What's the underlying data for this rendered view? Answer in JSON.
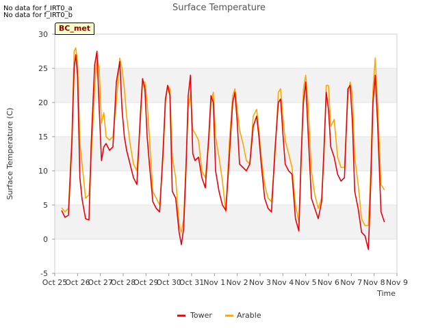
{
  "notes": [
    "No data for f_IRT0_a",
    "No data for f_IRT0_b"
  ],
  "badge": "BC_met",
  "chart_data": {
    "type": "line",
    "title": "Surface Temperature",
    "xlabel": "Time",
    "ylabel": "Surface Temperature (C)",
    "ylim": [
      -5,
      30
    ],
    "yticks": [
      -5,
      0,
      5,
      10,
      15,
      20,
      25,
      30
    ],
    "xlim": [
      0,
      15
    ],
    "xticks": [
      0,
      1,
      2,
      3,
      4,
      5,
      6,
      7,
      8,
      9,
      10,
      11,
      12,
      13,
      14,
      15
    ],
    "xtick_labels": [
      "Oct 25",
      "Oct 26",
      "Oct 27",
      "Oct 28",
      "Oct 29",
      "Oct 30",
      "Oct 31",
      "Nov 1",
      "Nov 2",
      "Nov 3",
      "Nov 4",
      "Nov 5",
      "Nov 6",
      "Nov 7",
      "Nov 8",
      "Nov 9"
    ],
    "grid": true,
    "legend_position": "bottom-center",
    "colors": {
      "Tower": "#e8000b",
      "Arable": "#ffa500",
      "band": "#f2f2f2",
      "grid": "#dddddd"
    },
    "series": [
      {
        "name": "Tower",
        "x": [
          0.3,
          0.45,
          0.6,
          0.75,
          0.85,
          0.92,
          1.0,
          1.1,
          1.2,
          1.35,
          1.5,
          1.6,
          1.75,
          1.85,
          1.95,
          2.05,
          2.15,
          2.25,
          2.4,
          2.55,
          2.7,
          2.85,
          2.95,
          3.05,
          3.15,
          3.3,
          3.45,
          3.6,
          3.75,
          3.85,
          3.95,
          4.05,
          4.15,
          4.3,
          4.45,
          4.6,
          4.75,
          4.85,
          4.95,
          5.05,
          5.15,
          5.3,
          5.45,
          5.55,
          5.65,
          5.75,
          5.85,
          5.95,
          6.05,
          6.15,
          6.3,
          6.45,
          6.6,
          6.75,
          6.85,
          6.95,
          7.05,
          7.2,
          7.35,
          7.5,
          7.65,
          7.8,
          7.9,
          8.0,
          8.1,
          8.25,
          8.4,
          8.55,
          8.7,
          8.85,
          8.95,
          9.05,
          9.2,
          9.35,
          9.5,
          9.65,
          9.8,
          9.9,
          10.0,
          10.1,
          10.25,
          10.4,
          10.55,
          10.7,
          10.8,
          10.9,
          11.0,
          11.1,
          11.25,
          11.4,
          11.55,
          11.7,
          11.8,
          11.9,
          12.0,
          12.1,
          12.25,
          12.4,
          12.55,
          12.7,
          12.85,
          12.95,
          13.05,
          13.15,
          13.3,
          13.45,
          13.6,
          13.75,
          13.85,
          13.95,
          14.05,
          14.15,
          14.3,
          14.45
        ],
        "y": [
          4.2,
          3.2,
          3.5,
          14.0,
          25.0,
          27.0,
          24.0,
          9.0,
          5.8,
          3.0,
          2.8,
          14.0,
          25.5,
          27.5,
          19.0,
          11.5,
          13.5,
          14.0,
          13.0,
          13.5,
          23.0,
          26.0,
          19.0,
          15.0,
          13.0,
          11.0,
          9.0,
          8.0,
          18.0,
          23.5,
          22.0,
          15.0,
          11.0,
          5.5,
          4.5,
          4.0,
          13.0,
          20.5,
          22.5,
          21.0,
          7.0,
          6.0,
          1.0,
          -0.8,
          1.5,
          10.0,
          21.0,
          24.0,
          12.5,
          11.5,
          12.0,
          9.0,
          7.5,
          15.0,
          21.0,
          20.0,
          10.0,
          7.0,
          5.0,
          4.2,
          12.0,
          20.0,
          21.5,
          17.0,
          11.0,
          10.5,
          10.0,
          11.0,
          16.5,
          18.0,
          15.0,
          11.0,
          6.0,
          4.5,
          4.0,
          13.0,
          20.0,
          20.5,
          15.5,
          11.0,
          10.0,
          9.5,
          3.0,
          1.2,
          12.0,
          20.0,
          23.0,
          16.0,
          6.0,
          4.5,
          3.0,
          5.5,
          13.0,
          21.5,
          19.0,
          13.5,
          12.0,
          9.5,
          8.5,
          9.0,
          22.0,
          22.5,
          17.0,
          7.0,
          4.5,
          1.0,
          0.5,
          -1.5,
          8.0,
          20.0,
          24.0,
          17.0,
          4.0,
          2.5
        ]
      },
      {
        "name": "Arable",
        "x": [
          0.3,
          0.45,
          0.6,
          0.75,
          0.85,
          0.92,
          1.0,
          1.1,
          1.2,
          1.35,
          1.5,
          1.6,
          1.75,
          1.85,
          1.95,
          2.05,
          2.15,
          2.25,
          2.4,
          2.55,
          2.7,
          2.85,
          2.95,
          3.05,
          3.15,
          3.3,
          3.45,
          3.6,
          3.75,
          3.85,
          3.95,
          4.05,
          4.15,
          4.3,
          4.45,
          4.6,
          4.75,
          4.85,
          4.95,
          5.05,
          5.15,
          5.3,
          5.45,
          5.55,
          5.65,
          5.75,
          5.85,
          5.95,
          6.05,
          6.15,
          6.3,
          6.45,
          6.6,
          6.75,
          6.85,
          6.95,
          7.05,
          7.2,
          7.35,
          7.5,
          7.65,
          7.8,
          7.9,
          8.0,
          8.1,
          8.25,
          8.4,
          8.55,
          8.7,
          8.85,
          8.95,
          9.05,
          9.2,
          9.35,
          9.5,
          9.65,
          9.8,
          9.9,
          10.0,
          10.1,
          10.25,
          10.4,
          10.55,
          10.7,
          10.8,
          10.9,
          11.0,
          11.1,
          11.25,
          11.4,
          11.55,
          11.7,
          11.8,
          11.9,
          12.0,
          12.1,
          12.25,
          12.4,
          12.55,
          12.7,
          12.85,
          12.95,
          13.05,
          13.15,
          13.3,
          13.45,
          13.6,
          13.75,
          13.85,
          13.95,
          14.05,
          14.15,
          14.3,
          14.45
        ],
        "y": [
          4.6,
          4.0,
          4.5,
          15.0,
          27.5,
          28.0,
          26.0,
          14.0,
          11.0,
          6.0,
          6.5,
          12.0,
          22.0,
          26.5,
          25.0,
          17.0,
          18.5,
          15.0,
          14.5,
          15.0,
          20.0,
          26.5,
          25.0,
          22.0,
          18.0,
          14.0,
          11.0,
          10.0,
          17.0,
          23.0,
          23.0,
          20.0,
          15.0,
          7.0,
          6.0,
          5.0,
          12.0,
          20.0,
          22.5,
          22.0,
          12.0,
          9.0,
          2.0,
          1.0,
          3.0,
          11.0,
          19.0,
          21.5,
          16.0,
          15.5,
          14.5,
          10.0,
          9.0,
          14.0,
          20.0,
          21.5,
          15.0,
          12.0,
          8.5,
          4.0,
          14.0,
          21.0,
          22.0,
          19.0,
          16.0,
          14.0,
          11.5,
          11.0,
          18.0,
          19.0,
          16.0,
          12.0,
          8.0,
          6.0,
          5.5,
          12.0,
          21.5,
          22.0,
          18.0,
          14.5,
          12.5,
          10.5,
          5.0,
          2.5,
          11.0,
          22.0,
          24.0,
          20.0,
          10.0,
          6.5,
          4.5,
          6.0,
          12.0,
          22.5,
          22.5,
          16.5,
          17.5,
          12.0,
          10.5,
          10.5,
          21.0,
          23.0,
          21.0,
          12.0,
          8.0,
          3.0,
          2.0,
          2.0,
          10.0,
          22.0,
          26.5,
          20.0,
          8.0,
          7.2
        ]
      }
    ]
  }
}
